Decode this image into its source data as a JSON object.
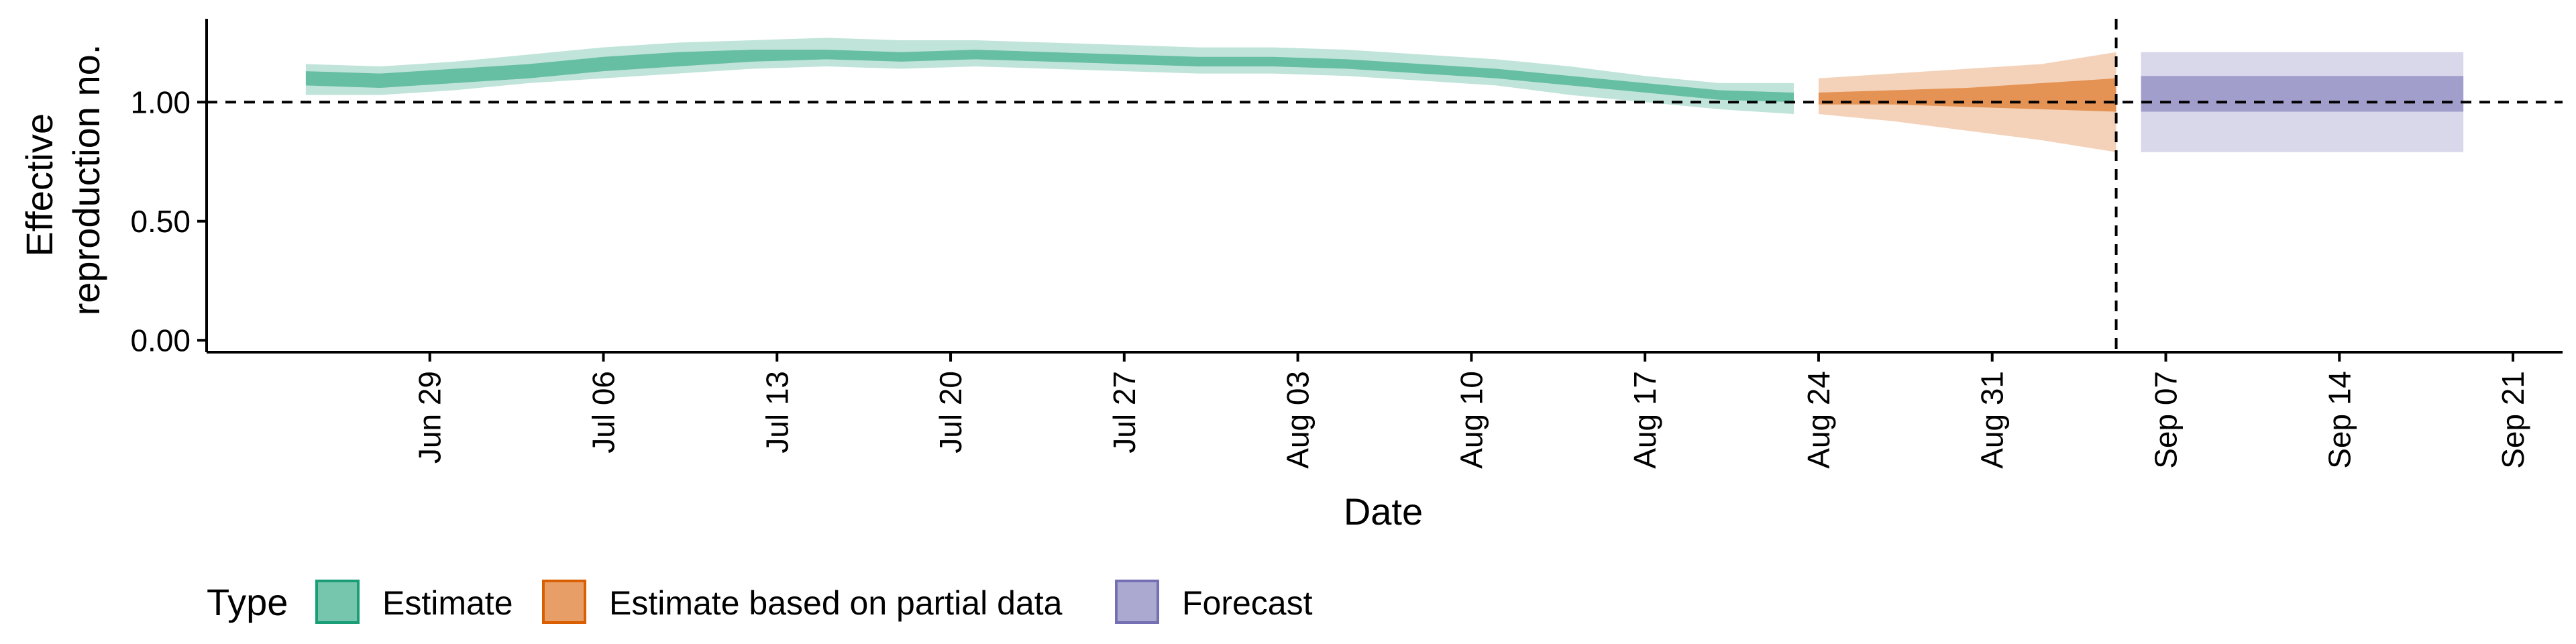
{
  "chart_data": {
    "type": "area",
    "title": "",
    "xlabel": "Date",
    "ylabel": [
      "Effective",
      "reproduction no."
    ],
    "x_range": [
      "2020-06-20",
      "2020-09-23"
    ],
    "ylim": [
      -0.05,
      1.35
    ],
    "x_ticks": [
      "2020-06-29",
      "2020-07-06",
      "2020-07-13",
      "2020-07-20",
      "2020-07-27",
      "2020-08-03",
      "2020-08-10",
      "2020-08-17",
      "2020-08-24",
      "2020-08-31",
      "2020-09-07",
      "2020-09-14",
      "2020-09-21"
    ],
    "x_tick_labels": [
      "Jun 29",
      "Jul 06",
      "Jul 13",
      "Jul 20",
      "Jul 27",
      "Aug 03",
      "Aug 10",
      "Aug 17",
      "Aug 24",
      "Aug 31",
      "Sep 07",
      "Sep 14",
      "Sep 21"
    ],
    "y_ticks": [
      0,
      0.5,
      1.0
    ],
    "y_tick_labels": [
      "0.00",
      "0.50",
      "1.00"
    ],
    "grid": false,
    "reference_line_y": 1.0,
    "reference_line_date": "2020-09-05",
    "legend": {
      "title": "Type",
      "position": "bottom-left",
      "items": [
        {
          "label": "Estimate",
          "color": "#1b9e77"
        },
        {
          "label": "Estimate based on partial data",
          "color": "#d95f02"
        },
        {
          "label": "Forecast",
          "color": "#7570b3"
        }
      ]
    },
    "series": [
      {
        "name": "Estimate",
        "color": "#1b9e77",
        "x": [
          "2020-06-24",
          "2020-06-27",
          "2020-06-30",
          "2020-07-03",
          "2020-07-06",
          "2020-07-09",
          "2020-07-12",
          "2020-07-15",
          "2020-07-18",
          "2020-07-21",
          "2020-07-24",
          "2020-07-27",
          "2020-07-30",
          "2020-08-02",
          "2020-08-05",
          "2020-08-08",
          "2020-08-11",
          "2020-08-14",
          "2020-08-17",
          "2020-08-20",
          "2020-08-23"
        ],
        "median": [
          1.1,
          1.09,
          1.11,
          1.13,
          1.16,
          1.18,
          1.19,
          1.2,
          1.19,
          1.2,
          1.19,
          1.18,
          1.17,
          1.17,
          1.16,
          1.14,
          1.12,
          1.09,
          1.06,
          1.03,
          1.02
        ],
        "lower_50": [
          1.07,
          1.06,
          1.08,
          1.1,
          1.13,
          1.15,
          1.17,
          1.18,
          1.17,
          1.18,
          1.17,
          1.16,
          1.15,
          1.15,
          1.14,
          1.12,
          1.1,
          1.07,
          1.04,
          1.01,
          1.0
        ],
        "upper_50": [
          1.13,
          1.12,
          1.14,
          1.16,
          1.19,
          1.21,
          1.22,
          1.22,
          1.21,
          1.22,
          1.21,
          1.2,
          1.19,
          1.19,
          1.18,
          1.16,
          1.14,
          1.11,
          1.08,
          1.05,
          1.04
        ],
        "lower_90": [
          1.03,
          1.03,
          1.05,
          1.08,
          1.1,
          1.12,
          1.14,
          1.15,
          1.14,
          1.15,
          1.14,
          1.13,
          1.12,
          1.12,
          1.11,
          1.09,
          1.07,
          1.03,
          1.0,
          0.97,
          0.95
        ],
        "upper_90": [
          1.16,
          1.15,
          1.17,
          1.2,
          1.23,
          1.25,
          1.26,
          1.27,
          1.26,
          1.26,
          1.25,
          1.24,
          1.23,
          1.23,
          1.22,
          1.2,
          1.18,
          1.15,
          1.11,
          1.08,
          1.08
        ]
      },
      {
        "name": "Estimate based on partial data",
        "color": "#d95f02",
        "x": [
          "2020-08-24",
          "2020-08-27",
          "2020-08-30",
          "2020-09-02",
          "2020-09-05"
        ],
        "median": [
          1.02,
          1.02,
          1.02,
          1.03,
          1.03
        ],
        "lower_50": [
          0.99,
          0.99,
          0.98,
          0.97,
          0.96
        ],
        "upper_50": [
          1.04,
          1.05,
          1.06,
          1.08,
          1.1
        ],
        "lower_90": [
          0.95,
          0.92,
          0.88,
          0.84,
          0.79
        ],
        "upper_90": [
          1.1,
          1.12,
          1.14,
          1.16,
          1.21
        ]
      },
      {
        "name": "Forecast",
        "color": "#7570b3",
        "x": [
          "2020-09-06",
          "2020-09-19"
        ],
        "median": [
          1.03,
          1.03
        ],
        "lower_50": [
          0.96,
          0.96
        ],
        "upper_50": [
          1.11,
          1.11
        ],
        "lower_90": [
          0.79,
          0.79
        ],
        "upper_90": [
          1.21,
          1.21
        ]
      }
    ]
  }
}
